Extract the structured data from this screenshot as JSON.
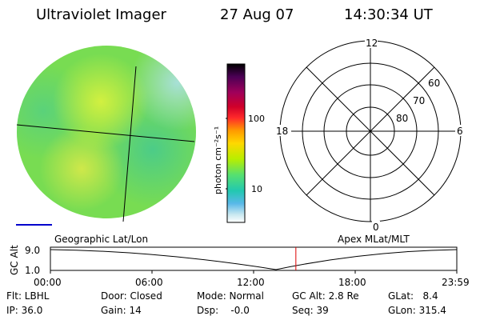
{
  "header": {
    "instrument": "Ultraviolet Imager",
    "date": "27 Aug 07",
    "time": "14:30:34 UT"
  },
  "colorbar": {
    "label": "photon cm⁻²s⁻¹",
    "ticks": [
      "100",
      "10"
    ],
    "colors": [
      "#000000",
      "#4b0055",
      "#a0005a",
      "#d0002a",
      "#ff2a2a",
      "#ff9a00",
      "#ffd800",
      "#b8ee00",
      "#56e070",
      "#22c8b0",
      "#58b8e8",
      "#c8e8f0",
      "#ffffff"
    ]
  },
  "polar_grid": {
    "mlt_labels": {
      "top": "12",
      "left": "18",
      "right": "6",
      "bottom": "0"
    },
    "lat_labels": [
      "60",
      "70",
      "80"
    ]
  },
  "image_caption": "Geographic Lat/Lon",
  "grid_caption": "Apex MLat/MLT",
  "timeline": {
    "ylabel": "GC Alt",
    "ytick_top": "9.0",
    "ytick_bottom": "1.0",
    "xticks": [
      "00:00",
      "06:00",
      "12:00",
      "18:00",
      "23:59"
    ],
    "current_time_fraction": 0.604
  },
  "status": {
    "row1": [
      {
        "key": "flt",
        "text": "Flt: LBHL"
      },
      {
        "key": "door",
        "text": "Door: Closed"
      },
      {
        "key": "mode",
        "text": "Mode: Normal"
      },
      {
        "key": "gcalt",
        "text": "GC Alt: 2.8 Re"
      },
      {
        "key": "glat",
        "text": "GLat:   8.4"
      }
    ],
    "row2": [
      {
        "key": "ip",
        "text": "IP: 36.0"
      },
      {
        "key": "gain",
        "text": "Gain: 14"
      },
      {
        "key": "dsp",
        "text": "Dsp:    -0.0"
      },
      {
        "key": "seq",
        "text": "Seq: 39"
      },
      {
        "key": "glon",
        "text": "GLon: 315.4"
      }
    ]
  },
  "colors": {
    "imager_green": "#76e04a",
    "imager_yellow": "#c8ee3a",
    "imager_cyan": "#58d8a0",
    "marker_red": "#dd0000",
    "scale_blue": "#0000cc"
  }
}
